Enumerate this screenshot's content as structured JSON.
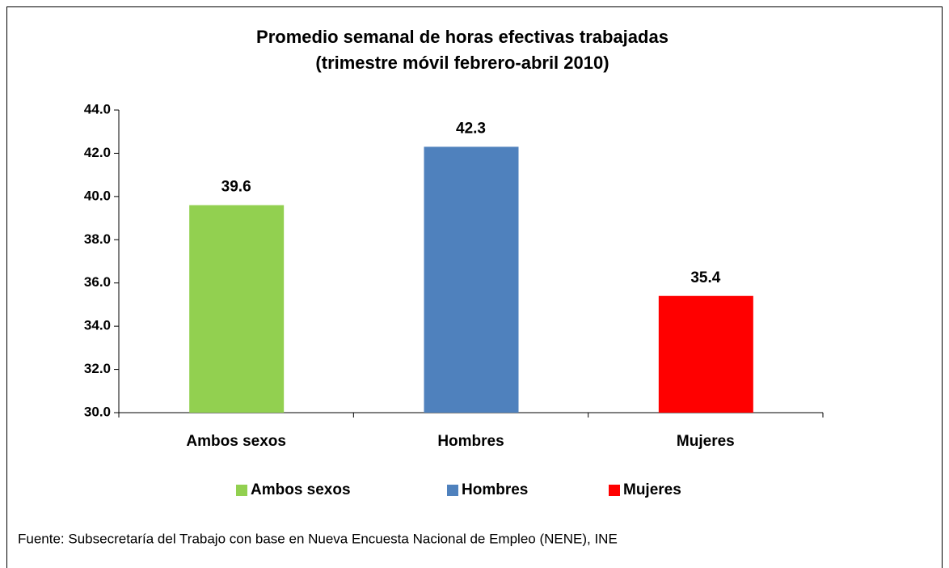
{
  "chart_data": {
    "type": "bar",
    "title": [
      "Promedio semanal de horas efectivas trabajadas",
      "(trimestre móvil febrero-abril 2010)"
    ],
    "categories": [
      "Ambos sexos",
      "Hombres",
      "Mujeres"
    ],
    "values": [
      39.6,
      42.3,
      35.4
    ],
    "colors": [
      "#92d050",
      "#4f81bd",
      "#ff0000"
    ],
    "ylim": [
      30,
      44
    ],
    "yticks": [
      {
        "value": 30,
        "label": "30.0"
      },
      {
        "value": 32,
        "label": "32.0"
      },
      {
        "value": 34,
        "label": "34.0"
      },
      {
        "value": 36,
        "label": "36.0"
      },
      {
        "value": 38,
        "label": "38.0"
      },
      {
        "value": 40,
        "label": "40.0"
      },
      {
        "value": 42,
        "label": "42.0"
      },
      {
        "value": 44,
        "label": "44.0"
      }
    ],
    "legend": "bottom",
    "note": "Fuente: Subsecretaría del Trabajo con base en Nueva Encuesta Nacional de Empleo (NENE), INE"
  }
}
